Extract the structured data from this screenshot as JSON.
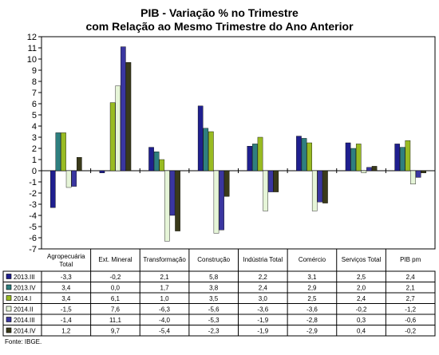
{
  "chart_data": {
    "type": "bar",
    "title": "PIB - Variação % no Trimestre",
    "subtitle": "com Relação ao Mesmo Trimestre do Ano Anterior",
    "ylim": [
      -7,
      12
    ],
    "yticks": [
      12,
      11,
      10,
      9,
      8,
      7,
      6,
      5,
      4,
      3,
      2,
      1,
      0,
      -1,
      -2,
      -3,
      -4,
      -5,
      -6,
      -7
    ],
    "grid": false,
    "categories": [
      [
        "Agropecuária",
        "Total"
      ],
      [
        "Ext. Mineral"
      ],
      [
        "Transformação"
      ],
      [
        "Construção"
      ],
      [
        "Indústria Total"
      ],
      [
        "Comércio"
      ],
      [
        "Serviços Total"
      ],
      [
        "PIB pm"
      ]
    ],
    "series": [
      {
        "name": "2013.III",
        "color": "#1f1f8f",
        "values": [
          -3.3,
          -0.2,
          2.1,
          5.8,
          2.2,
          3.1,
          2.5,
          2.4
        ],
        "labels": [
          "-3,3",
          "-0,2",
          "2,1",
          "5,8",
          "2,2",
          "3,1",
          "2,5",
          "2,4"
        ]
      },
      {
        "name": "2013.IV",
        "color": "#2f7f7f",
        "values": [
          3.4,
          0.0,
          1.7,
          3.8,
          2.4,
          2.9,
          2.0,
          2.1
        ],
        "labels": [
          "3,4",
          "0,0",
          "1,7",
          "3,8",
          "2,4",
          "2,9",
          "2,0",
          "2,1"
        ]
      },
      {
        "name": "2014.I",
        "color": "#99bb22",
        "values": [
          3.4,
          6.1,
          1.0,
          3.5,
          3.0,
          2.5,
          2.4,
          2.7
        ],
        "labels": [
          "3,4",
          "6,1",
          "1,0",
          "3,5",
          "3,0",
          "2,5",
          "2,4",
          "2,7"
        ]
      },
      {
        "name": "2014.II",
        "color": "#e6f5d8",
        "values": [
          -1.5,
          7.6,
          -6.3,
          -5.6,
          -3.6,
          -3.6,
          -0.2,
          -1.2
        ],
        "labels": [
          "-1,5",
          "7,6",
          "-6,3",
          "-5,6",
          "-3,6",
          "-3,6",
          "-0,2",
          "-1,2"
        ]
      },
      {
        "name": "2014.III",
        "color": "#3a36a0",
        "values": [
          -1.4,
          11.1,
          -4.0,
          -5.3,
          -1.9,
          -2.8,
          0.3,
          -0.6
        ],
        "labels": [
          "-1,4",
          "11,1",
          "-4,0",
          "-5,3",
          "-1,9",
          "-2,8",
          "0,3",
          "-0,6"
        ]
      },
      {
        "name": "2014.IV",
        "color": "#3a3a1a",
        "values": [
          1.2,
          9.7,
          -5.4,
          -2.3,
          -1.9,
          -2.9,
          0.4,
          -0.2
        ],
        "labels": [
          "1,2",
          "9,7",
          "-5,4",
          "-2,3",
          "-1,9",
          "-2,9",
          "0,4",
          "-0,2"
        ]
      }
    ],
    "source": "Fonte: IBGE."
  }
}
